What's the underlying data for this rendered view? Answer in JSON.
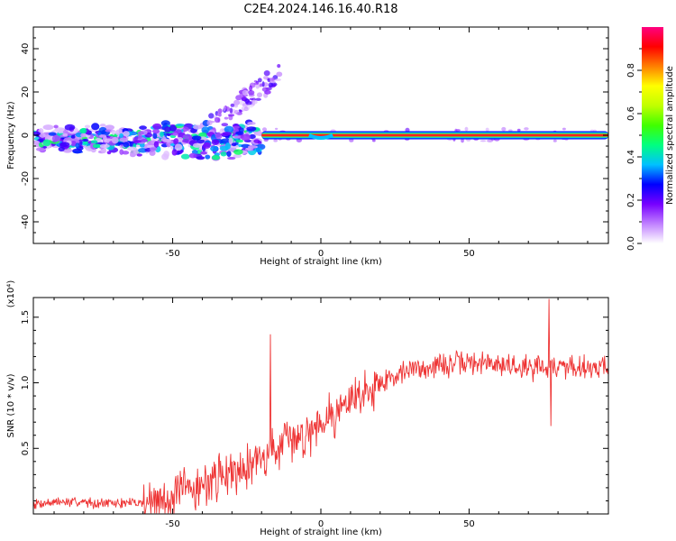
{
  "figure": {
    "title": "C2E4.2024.146.16.40.R18"
  },
  "chart_data": [
    {
      "type": "heatmap",
      "xlabel": "Height of straight line (km)",
      "ylabel": "Frequency (Hz)",
      "xlim": [
        -97,
        97
      ],
      "ylim": [
        -50,
        50
      ],
      "x_ticks": [
        -50,
        0,
        50
      ],
      "x_tick_labels": [
        "-50",
        "0",
        "50"
      ],
      "y_ticks": [
        -40,
        -20,
        0,
        20,
        40
      ],
      "y_tick_labels": [
        "-40",
        "-20",
        "0",
        "20",
        "40"
      ],
      "colorbar": {
        "label": "Normalized spectral amplitude",
        "range": [
          0,
          1
        ],
        "ticks": [
          0.0,
          0.2,
          0.4,
          0.6,
          0.8
        ],
        "tick_labels": [
          "0.0",
          "0.2",
          "0.4",
          "0.6",
          "0.8"
        ],
        "colors": [
          "#ffffff",
          "#c080ff",
          "#7700ff",
          "#0000ff",
          "#00c0ff",
          "#00ff80",
          "#40ff00",
          "#c0ff00",
          "#ffff00",
          "#ff8000",
          "#ff0000",
          "#ff0080"
        ]
      },
      "features": [
        {
          "description_x_range": [
            -97,
            -20
          ],
          "frequency_range": [
            -10,
            10
          ],
          "amplitude_range": [
            0.1,
            0.5
          ]
        },
        {
          "description_x_range": [
            -35,
            -15
          ],
          "frequency_range": [
            0,
            28
          ],
          "amplitude_range": [
            0.02,
            0.2
          ]
        },
        {
          "description_x_range": [
            -20,
            97
          ],
          "frequency_range": [
            -2,
            2
          ],
          "amplitude_range": [
            0.6,
            1.0
          ]
        }
      ]
    },
    {
      "type": "line",
      "xlabel": "Height of straight line (km)",
      "ylabel": "SNR (10 * v/v)",
      "y_multiplier_label": "(x10⁴)",
      "xlim": [
        -97,
        97
      ],
      "ylim": [
        0,
        1.65
      ],
      "x_ticks": [
        -50,
        0,
        50
      ],
      "x_tick_labels": [
        "-50",
        "0",
        "50"
      ],
      "y_ticks": [
        0.5,
        1.0,
        1.5
      ],
      "y_tick_labels": [
        "0.5",
        "1.0",
        "1.5"
      ],
      "series": [
        {
          "color": "#ee3333",
          "x": [
            -97,
            -90,
            -80,
            -70,
            -60,
            -55,
            -50,
            -45,
            -40,
            -35,
            -30,
            -25,
            -20,
            -15,
            -10,
            -5,
            0,
            5,
            10,
            15,
            20,
            25,
            30,
            35,
            40,
            45,
            50,
            55,
            60,
            65,
            70,
            75,
            80,
            85,
            90,
            97
          ],
          "values": [
            0.08,
            0.09,
            0.09,
            0.08,
            0.09,
            0.1,
            0.13,
            0.18,
            0.22,
            0.28,
            0.33,
            0.38,
            0.43,
            0.5,
            0.55,
            0.62,
            0.72,
            0.78,
            0.86,
            0.94,
            1.0,
            1.06,
            1.1,
            1.12,
            1.13,
            1.14,
            1.15,
            1.15,
            1.14,
            1.13,
            1.12,
            1.13,
            1.12,
            1.13,
            1.12,
            1.13
          ],
          "spikes": [
            {
              "x": -17,
              "value": 1.37
            },
            {
              "x": 77,
              "value": 1.64
            },
            {
              "x": 77.5,
              "value": 0.67
            }
          ]
        }
      ]
    }
  ]
}
